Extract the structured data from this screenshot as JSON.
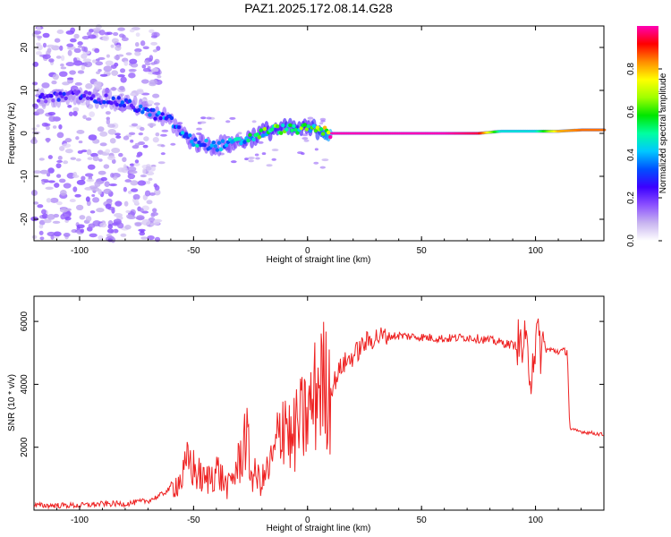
{
  "title": "PAZ1.2025.172.08.14.G28",
  "chart_data": [
    {
      "type": "heatmap",
      "xlabel": "Height of straight line (km)",
      "ylabel": "Frequency (Hz)",
      "xlim": [
        -120,
        130
      ],
      "ylim": [
        -25,
        25
      ],
      "xticks": [
        -100,
        -50,
        0,
        50,
        100
      ],
      "yticks": [
        -20,
        -10,
        0,
        10,
        20
      ],
      "colorbar": {
        "label": "Normalized spectral amplitude",
        "range": [
          0,
          1
        ],
        "ticks": [
          "0.0",
          "0.2",
          "0.4",
          "0.6",
          "0.8"
        ],
        "colors": [
          "#ffffff",
          "#c8b4f0",
          "#8c50ff",
          "#3c00ff",
          "#0050ff",
          "#00c8ff",
          "#00ffa0",
          "#00e600",
          "#a0ff00",
          "#ffff00",
          "#ff8c00",
          "#ff0000",
          "#ff00b4"
        ]
      },
      "ridge": {
        "description_points_x_km": [
          -120,
          -100,
          -90,
          -80,
          -70,
          -60,
          -55,
          -50,
          -40,
          -30,
          -25,
          -20,
          -15,
          -10,
          -5,
          0,
          5,
          10,
          20,
          40,
          60,
          75,
          85,
          95,
          100,
          110,
          120,
          130
        ],
        "frequency_hz": [
          8,
          9,
          8,
          7,
          5,
          3,
          0,
          -2,
          -3,
          -2,
          -1,
          0,
          1,
          1,
          1,
          1,
          1,
          0,
          0,
          0,
          0,
          0,
          0.5,
          0.5,
          0.5,
          0.5,
          0.8,
          0.8
        ],
        "normalized_amplitude": [
          0.25,
          0.3,
          0.3,
          0.32,
          0.35,
          0.4,
          0.42,
          0.45,
          0.45,
          0.5,
          0.55,
          0.6,
          0.65,
          0.65,
          0.7,
          0.6,
          0.75,
          1.0,
          1.0,
          1.0,
          1.0,
          0.95,
          0.45,
          0.45,
          0.45,
          0.8,
          0.85,
          0.85
        ]
      }
    },
    {
      "type": "line",
      "xlabel": "Height of straight line (km)",
      "ylabel": "SNR (10 * v/v)",
      "xlim": [
        -120,
        130
      ],
      "ylim": [
        0,
        6800
      ],
      "xticks": [
        -100,
        -50,
        0,
        50,
        100
      ],
      "yticks": [
        2000,
        4000,
        6000
      ],
      "series": [
        {
          "color": "#ee2222",
          "x": [
            -120,
            -110,
            -100,
            -90,
            -80,
            -75,
            -70,
            -65,
            -60,
            -55,
            -52,
            -50,
            -45,
            -40,
            -35,
            -30,
            -27,
            -25,
            -20,
            -15,
            -10,
            -7,
            -5,
            0,
            3,
            5,
            8,
            10,
            15,
            20,
            25,
            30,
            40,
            50,
            60,
            70,
            80,
            90,
            95,
            98,
            100,
            102,
            105,
            110,
            114,
            115,
            116,
            120,
            125,
            130
          ],
          "y": [
            150,
            150,
            150,
            200,
            200,
            250,
            300,
            450,
            700,
            1000,
            1600,
            1300,
            900,
            1300,
            700,
            1500,
            2500,
            1200,
            900,
            1600,
            3200,
            2000,
            2600,
            3000,
            3500,
            4200,
            3900,
            3800,
            4600,
            4900,
            5300,
            5500,
            5550,
            5500,
            5450,
            5500,
            5400,
            5250,
            5200,
            4500,
            5400,
            5200,
            5100,
            5050,
            5050,
            2600,
            2550,
            2500,
            2450,
            2400
          ]
        }
      ]
    }
  ]
}
